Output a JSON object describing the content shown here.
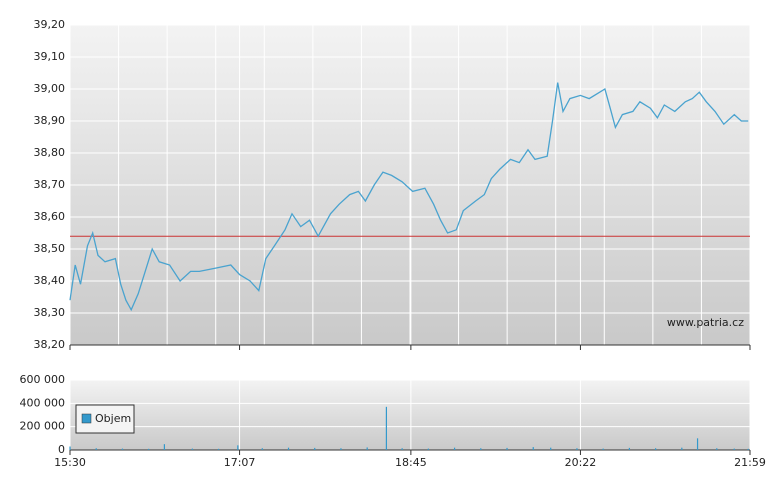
{
  "chart_data": [
    {
      "type": "line",
      "xlim": [
        "15:30",
        "21:59"
      ],
      "ylim": [
        38.2,
        39.2
      ],
      "yticks": [
        {
          "value": 38.2,
          "label": "38,20"
        },
        {
          "value": 38.3,
          "label": "38,30"
        },
        {
          "value": 38.4,
          "label": "38,40"
        },
        {
          "value": 38.5,
          "label": "38,50"
        },
        {
          "value": 38.6,
          "label": "38,60"
        },
        {
          "value": 38.7,
          "label": "38,70"
        },
        {
          "value": 38.8,
          "label": "38,80"
        },
        {
          "value": 38.9,
          "label": "38,90"
        },
        {
          "value": 39.0,
          "label": "39,00"
        },
        {
          "value": 39.1,
          "label": "39,10"
        },
        {
          "value": 39.2,
          "label": "39,20"
        }
      ],
      "grid": true,
      "reference_line": {
        "value": 38.54,
        "color": "#cc3333"
      },
      "watermark": "www.patria.cz",
      "x": [
        "15:30",
        "15:33",
        "15:36",
        "15:40",
        "15:43",
        "15:46",
        "15:50",
        "15:56",
        "15:59",
        "16:02",
        "16:05",
        "16:09",
        "16:13",
        "16:17",
        "16:21",
        "16:27",
        "16:33",
        "16:39",
        "16:44",
        "16:53",
        "17:02",
        "17:07",
        "17:13",
        "17:18",
        "17:22",
        "17:27",
        "17:33",
        "17:37",
        "17:42",
        "17:47",
        "17:52",
        "17:59",
        "18:04",
        "18:10",
        "18:15",
        "18:19",
        "18:24",
        "18:29",
        "18:34",
        "18:40",
        "18:46",
        "18:53",
        "18:58",
        "19:02",
        "19:06",
        "19:11",
        "19:15",
        "19:22",
        "19:27",
        "19:31",
        "19:36",
        "19:42",
        "19:47",
        "19:52",
        "19:56",
        "20:03",
        "20:06",
        "20:09",
        "20:12",
        "20:16",
        "20:22",
        "20:27",
        "20:33",
        "20:36",
        "20:39",
        "20:42",
        "20:46",
        "20:52",
        "20:56",
        "21:02",
        "21:06",
        "21:10",
        "21:16",
        "21:22",
        "21:26",
        "21:30",
        "21:34",
        "21:39",
        "21:44",
        "21:50",
        "21:54",
        "21:58"
      ],
      "series": [
        {
          "color": "#4aa3cf",
          "values": [
            38.34,
            38.45,
            38.39,
            38.51,
            38.55,
            38.48,
            38.46,
            38.47,
            38.39,
            38.34,
            38.31,
            38.36,
            38.43,
            38.5,
            38.46,
            38.45,
            38.4,
            38.43,
            38.43,
            38.44,
            38.45,
            38.42,
            38.4,
            38.37,
            38.47,
            38.51,
            38.56,
            38.61,
            38.57,
            38.59,
            38.54,
            38.61,
            38.64,
            38.67,
            38.68,
            38.65,
            38.7,
            38.74,
            38.73,
            38.71,
            38.68,
            38.69,
            38.64,
            38.59,
            38.55,
            38.56,
            38.62,
            38.65,
            38.67,
            38.72,
            38.75,
            38.78,
            38.77,
            38.81,
            38.78,
            38.79,
            38.9,
            39.02,
            38.93,
            38.97,
            38.98,
            38.97,
            38.99,
            39.0,
            38.94,
            38.88,
            38.92,
            38.93,
            38.96,
            38.94,
            38.91,
            38.95,
            38.93,
            38.96,
            38.97,
            38.99,
            38.96,
            38.93,
            38.89,
            38.92,
            38.9,
            38.9
          ]
        }
      ]
    },
    {
      "type": "bar",
      "xlim": [
        "15:30",
        "21:59"
      ],
      "ylim": [
        0,
        600000
      ],
      "xticks": [
        "15:30",
        "17:07",
        "18:45",
        "20:22",
        "21:59"
      ],
      "yticks": [
        0,
        {
          "value": 200000,
          "label": "200 000"
        },
        {
          "value": 400000,
          "label": "400 000"
        },
        {
          "value": 600000,
          "label": "600 000"
        }
      ],
      "grid": true,
      "legend": "upper left",
      "x": [
        "15:30",
        "15:45",
        "16:00",
        "16:15",
        "16:24",
        "16:40",
        "16:55",
        "17:06",
        "17:20",
        "17:35",
        "17:50",
        "18:05",
        "18:20",
        "18:31",
        "18:40",
        "18:55",
        "19:10",
        "19:25",
        "19:40",
        "19:55",
        "20:05",
        "20:20",
        "20:35",
        "20:50",
        "21:05",
        "21:20",
        "21:29",
        "21:40",
        "21:50",
        "21:58"
      ],
      "series": [
        {
          "name": "Objem",
          "color": "#3399cc",
          "values": [
            30000,
            15000,
            12000,
            10000,
            50000,
            12000,
            10000,
            40000,
            15000,
            20000,
            18000,
            15000,
            22000,
            370000,
            15000,
            12000,
            20000,
            15000,
            18000,
            25000,
            20000,
            15000,
            12000,
            18000,
            15000,
            20000,
            100000,
            15000,
            12000,
            10000
          ]
        }
      ]
    }
  ]
}
